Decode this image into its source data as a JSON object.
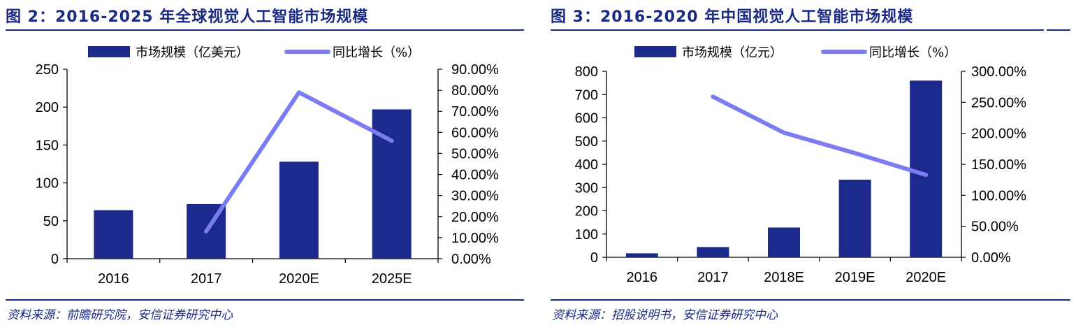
{
  "colors": {
    "bar": "#1b2a8c",
    "line": "#7b7cf0",
    "frame": "#1b2a84"
  },
  "chart_data": [
    {
      "type": "bar",
      "title": "图 2：2016-2025 年全球视觉人工智能市场规模",
      "categories": [
        "2016",
        "2017",
        "2020E",
        "2025E"
      ],
      "series": [
        {
          "name": "市场规模（亿美元）",
          "type": "bar",
          "axis": "left",
          "values": [
            64,
            72,
            128,
            197
          ]
        },
        {
          "name": "同比增长（%）",
          "type": "line",
          "axis": "right",
          "values": [
            null,
            13.0,
            79.0,
            56.0
          ]
        }
      ],
      "ylim": [
        0,
        250
      ],
      "yticks": [
        "0",
        "50",
        "100",
        "150",
        "200",
        "250"
      ],
      "y2lim": [
        0,
        90
      ],
      "y2ticks": [
        "0.00%",
        "10.00%",
        "20.00%",
        "30.00%",
        "40.00%",
        "50.00%",
        "60.00%",
        "70.00%",
        "80.00%",
        "90.00%"
      ],
      "legend_position": "top",
      "grid": false,
      "source": "资料来源：前瞻研究院，安信证券研究中心"
    },
    {
      "type": "bar",
      "title": "图 3：2016-2020 年中国视觉人工智能市场规模",
      "categories": [
        "2016",
        "2017",
        "2018E",
        "2019E",
        "2020E"
      ],
      "series": [
        {
          "name": "市场规模（亿元）",
          "type": "bar",
          "axis": "left",
          "values": [
            17,
            44,
            128,
            334,
            760
          ]
        },
        {
          "name": "同比增长（%）",
          "type": "line",
          "axis": "right",
          "values": [
            null,
            259.0,
            201.0,
            168.0,
            133.0
          ]
        }
      ],
      "ylim": [
        0,
        800
      ],
      "yticks": [
        "0",
        "100",
        "200",
        "300",
        "400",
        "500",
        "600",
        "700",
        "800"
      ],
      "y2lim": [
        0,
        300
      ],
      "y2ticks": [
        "0.00%",
        "50.00%",
        "100.00%",
        "150.00%",
        "200.00%",
        "250.00%",
        "300.00%"
      ],
      "legend_position": "top",
      "grid": false,
      "source": "资料来源：招股说明书，安信证券研究中心"
    }
  ]
}
